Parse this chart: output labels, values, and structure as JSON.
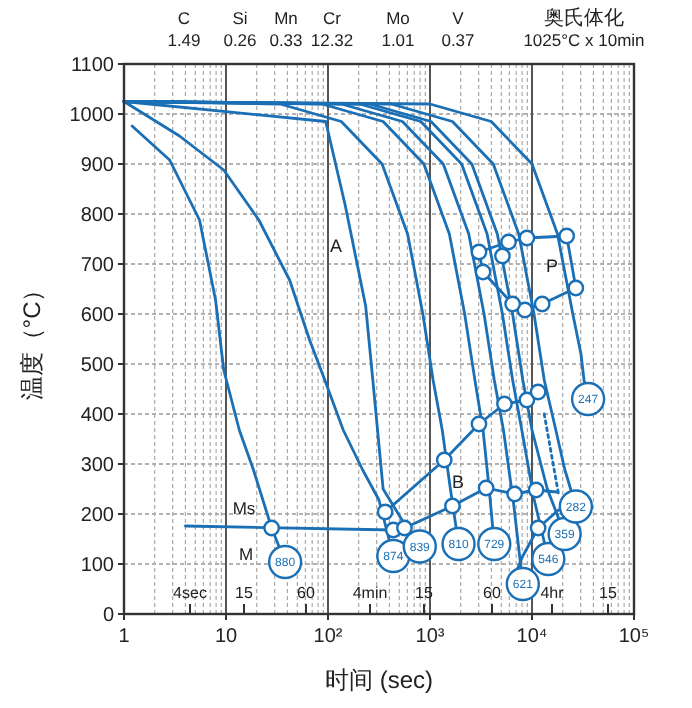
{
  "chart_data": {
    "type": "line",
    "xlabel": "时间 (sec)",
    "ylabel": "温度（°C）",
    "log": "x",
    "grid": true,
    "line_style": "solid",
    "xlim": [
      1,
      100000
    ],
    "xticks": [
      1,
      10,
      {
        "value": 100,
        "label": "10²"
      },
      {
        "value": 1000,
        "label": "10³"
      },
      {
        "value": 10000,
        "label": "10⁴"
      },
      {
        "value": 100000,
        "label": "10⁵"
      }
    ],
    "ylim": [
      0,
      1100
    ],
    "yticks": [
      0,
      100,
      200,
      300,
      400,
      500,
      600,
      700,
      800,
      900,
      1000,
      1100
    ],
    "series": [
      {
        "color": "#1a6fb5",
        "x": [
          1.2,
          2.8,
          5.5,
          7.9,
          9.5,
          13.5,
          18.6,
          28,
          38
        ],
        "values": [
          976,
          908,
          788,
          628,
          488,
          368,
          288,
          172,
          104
        ]
      },
      {
        "color": "#1a6fb5",
        "x": [
          1,
          3.5,
          9.5,
          21,
          42,
          66,
          93,
          141,
          219,
          316,
          437
        ],
        "values": [
          1025,
          956,
          888,
          788,
          668,
          548,
          468,
          368,
          288,
          228,
          116
        ]
      },
      {
        "color": "#1a6fb5",
        "x": [
          1,
          95,
          148,
          234,
          275,
          347,
          562,
          794
        ],
        "values": [
          1025,
          985,
          816,
          616,
          468,
          250,
          180,
          135
        ]
      },
      {
        "color": "#1a6fb5",
        "x": [
          1,
          34,
          135,
          339,
          603,
          851,
          1072,
          1318,
          1585,
          1905
        ],
        "values": [
          1025,
          1020,
          985,
          900,
          760,
          600,
          468,
          368,
          250,
          140
        ]
      },
      {
        "color": "#1a6fb5",
        "x": [
          1,
          87,
          347,
          871,
          1549,
          2188,
          2754,
          3311,
          3802,
          4266
        ],
        "values": [
          1025,
          1020,
          985,
          900,
          760,
          600,
          468,
          368,
          250,
          140
        ]
      },
      {
        "color": "#1a6fb5",
        "x": [
          1,
          135,
          537,
          1349,
          2399,
          3388,
          4266,
          5248,
          6607,
          8128
        ],
        "values": [
          1025,
          1020,
          985,
          900,
          760,
          600,
          468,
          368,
          220,
          60
        ]
      },
      {
        "color": "#1a6fb5",
        "x": [
          1,
          204,
          813,
          2042,
          3631,
          5129,
          6457,
          7943,
          10471,
          14454
        ],
        "values": [
          1025,
          1020,
          985,
          900,
          760,
          600,
          468,
          368,
          230,
          110
        ]
      },
      {
        "color": "#1a6fb5",
        "x": [
          1,
          257,
          1023,
          2570,
          4571,
          6457,
          8128,
          10000,
          14125,
          20893
        ],
        "values": [
          1025,
          1020,
          985,
          900,
          760,
          600,
          468,
          368,
          250,
          160
        ]
      },
      {
        "color": "#1a6fb5",
        "x": [
          1,
          417,
          1660,
          4169,
          7413,
          10471,
          13183,
          16596,
          20893,
          26915
        ],
        "values": [
          1025,
          1020,
          985,
          900,
          760,
          600,
          468,
          380,
          290,
          215
        ]
      },
      {
        "color": "#1a6fb5",
        "x": [
          1,
          1000,
          3981,
          10000,
          17783,
          25119,
          30200,
          32359,
          35481
        ],
        "values": [
          1025,
          1020,
          985,
          900,
          760,
          600,
          520,
          468,
          430
        ]
      },
      {
        "color": "#1a6fb5",
        "x": [
          4,
          437
        ],
        "values": [
          176,
          168
        ]
      },
      {
        "color": "#1a6fb5",
        "x": [
          3020,
          5888,
          8913,
          21878,
          26915
        ],
        "values": [
          724,
          744,
          752,
          756,
          652
        ]
      },
      {
        "color": "#1a6fb5",
        "x": [
          3020,
          3311,
          6457,
          8511,
          12589,
          26915
        ],
        "values": [
          724,
          684,
          620,
          608,
          620,
          652
        ]
      },
      {
        "color": "#1a6fb5",
        "x": [
          363,
          1380,
          3020,
          5370,
          8913,
          11482
        ],
        "values": [
          204,
          308,
          380,
          420,
          428,
          444
        ]
      },
      {
        "color": "#1a6fb5",
        "x": [
          562,
          1660,
          3548,
          6761,
          10965,
          17378
        ],
        "values": [
          172,
          216,
          252,
          240,
          248,
          244
        ]
      },
      {
        "color": "#1a6fb5",
        "x": [
          6457,
          8128,
          11482,
          18197
        ],
        "values": [
          68,
          116,
          172,
          208
        ]
      },
      {
        "color": "#1a6fb5",
        "line_style": "dotted",
        "x": [
          13183,
          18197
        ],
        "values": [
          400,
          240
        ]
      },
      {
        "type": "scatter",
        "color": "#1a6fb5",
        "marker": "circle",
        "x": [
          28,
          363,
          437,
          562,
          1380,
          1660,
          3020,
          3548,
          5370,
          6761,
          8913,
          10965,
          11482,
          11482,
          3020,
          3311,
          5129,
          5888,
          8913,
          21878,
          26915,
          12589,
          8511,
          6457
        ],
        "values": [
          172,
          204,
          168,
          172,
          308,
          216,
          380,
          252,
          420,
          240,
          428,
          248,
          444,
          172,
          724,
          684,
          716,
          744,
          752,
          756,
          652,
          620,
          608,
          620
        ]
      }
    ],
    "annotations": [
      "C\n1.49",
      "Si\n0.26",
      "Mn\n0.33",
      "Cr\n12.32",
      "Mo\n1.01",
      "V\n0.37",
      "奥氏体化\n1025°C x 10min",
      "A",
      "P",
      "B",
      "Ms",
      "M",
      "4sec",
      "15",
      "60",
      "4min",
      "15",
      "60",
      "4hr",
      "15",
      {
        "text": "880",
        "x": 38,
        "y": 104
      },
      {
        "text": "874",
        "x": 437,
        "y": 116
      },
      {
        "text": "839",
        "x": 794,
        "y": 135
      },
      {
        "text": "810",
        "x": 1905,
        "y": 140
      },
      {
        "text": "729",
        "x": 4266,
        "y": 140
      },
      {
        "text": "621",
        "x": 8128,
        "y": 60
      },
      {
        "text": "546",
        "x": 14454,
        "y": 110
      },
      {
        "text": "359",
        "x": 20893,
        "y": 160
      },
      {
        "text": "282",
        "x": 26915,
        "y": 215
      },
      {
        "text": "247",
        "x": 35481,
        "y": 430
      }
    ]
  }
}
